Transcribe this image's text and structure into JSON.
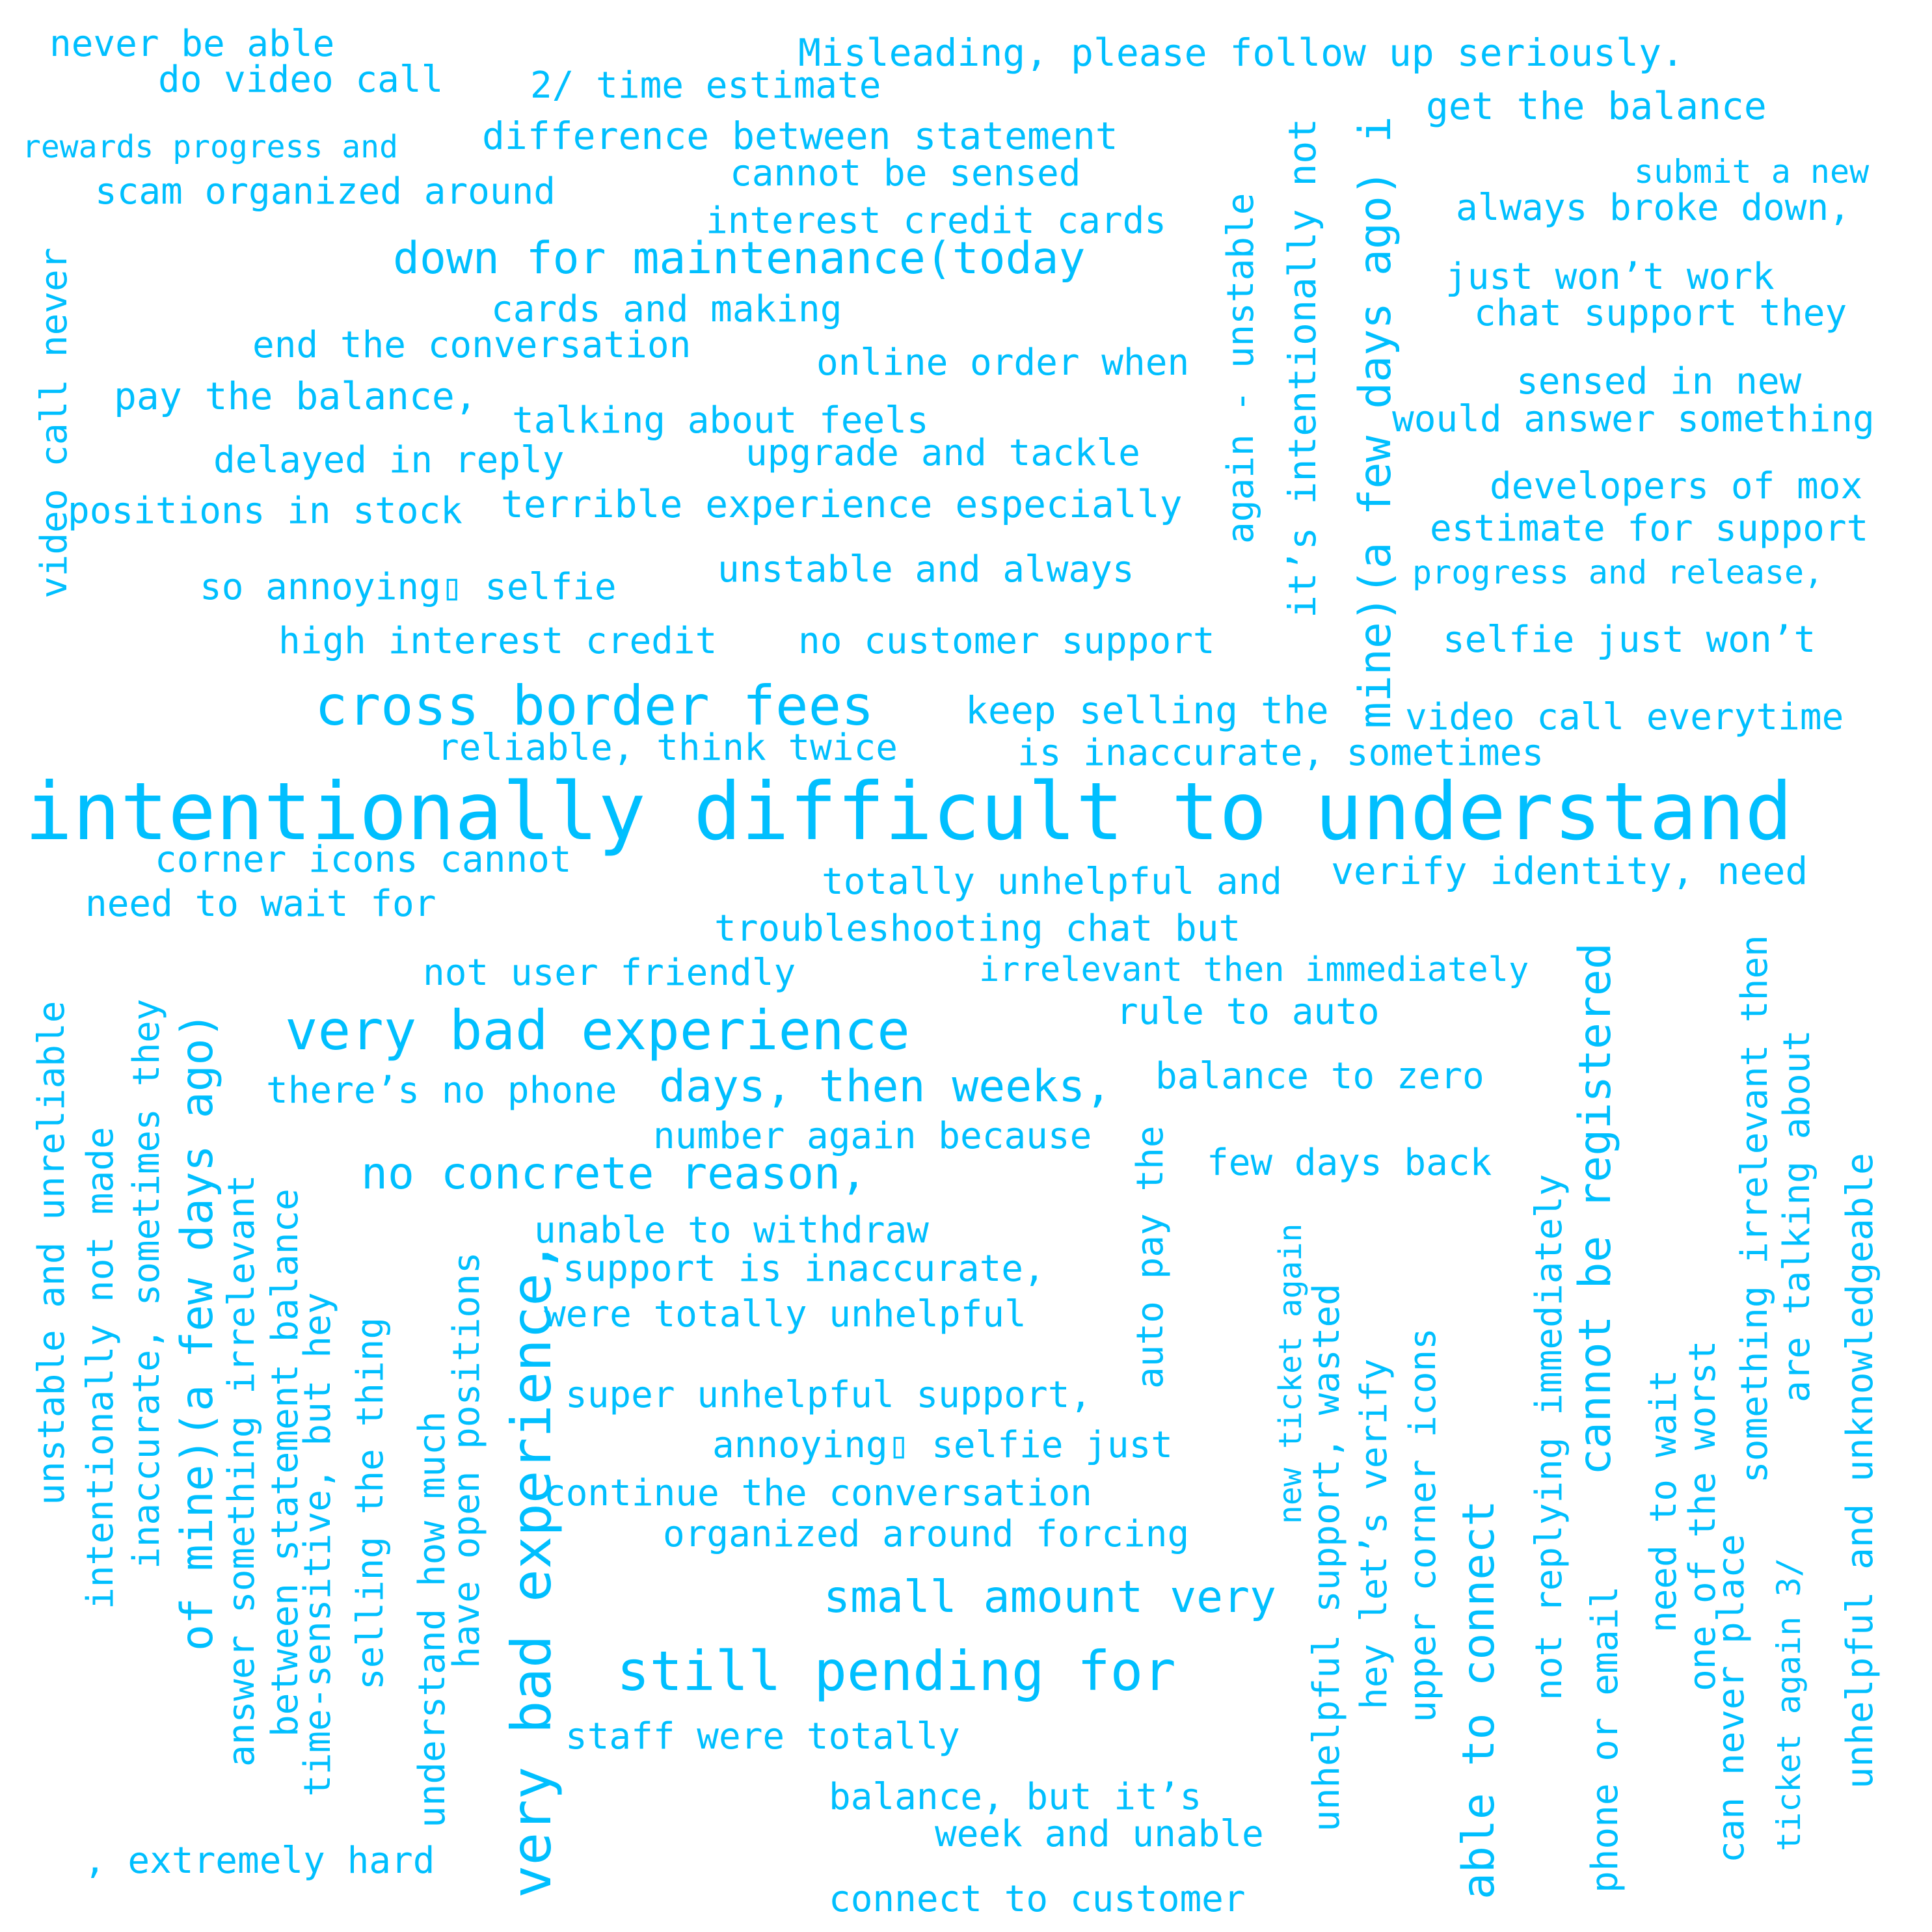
{
  "cloud": {
    "color": "#00bfff",
    "background": "#ffffff",
    "phrases": [
      "never be able",
      "do video call",
      "2/ time estimate",
      "Misleading, please follow up seriously.",
      "rewards progress and",
      "difference between statement",
      "get the balance",
      "submit a new",
      "scam organized around",
      "cannot be sensed",
      "always broke down,",
      "interest credit cards",
      "down for maintenance(today",
      "just won’t work",
      "chat support they",
      "cards and making",
      "end the conversation",
      "online order when",
      "sensed in new",
      "pay the balance,",
      "talking about feels",
      "would answer something",
      "delayed in reply",
      "upgrade and tackle",
      "developers of mox",
      "positions in stock",
      "terrible experience especially",
      "estimate for support",
      "progress and release,",
      "unstable and always",
      "so annoying▯ selfie",
      "high interest credit",
      "no customer support",
      "selfie just won’t",
      "cross border fees",
      "keep selling the",
      "video call everytime",
      "reliable, think twice",
      "is inaccurate, sometimes",
      "intentionally difficult to understand",
      "corner icons cannot",
      "totally unhelpful and",
      "verify identity, need",
      "need to wait for",
      "troubleshooting chat but",
      "not user friendly",
      "irrelevant then immediately",
      "rule to auto",
      "very bad experience",
      "there’s no phone",
      "days, then weeks,",
      "balance to zero",
      "number again because",
      "no concrete reason,",
      "few days back",
      "unable to withdraw",
      "support is inaccurate,",
      "were totally unhelpful",
      "super unhelpful support,",
      "annoying▯ selfie just",
      "continue the conversation",
      "organized around forcing",
      "small amount very",
      "still pending for",
      "staff were totally",
      "balance, but it’s",
      ", extremely hard",
      "week and unable",
      "connect to customer",
      "video call never",
      "again - unstable",
      "it’s intentionally not",
      "mine)(a few days ago) i",
      "unstable and unreliable",
      "intentionally not made",
      "inaccurate, sometimes they",
      "of mine)(a few days ago)",
      "answer something irrelevant",
      "between statement balance",
      "time-sensitive, but hey",
      "selling the thing",
      "understand how much",
      "have open positions",
      "very bad experience,",
      "auto pay the",
      "new ticket again",
      "unhelpful support, wasted",
      "hey let’s verify",
      "upper corner icons",
      "able to connect",
      "not replying immediately",
      "cannot be registered",
      "phone or email",
      "need to wait",
      "one of the worst",
      "can never place",
      "something irrelevant then",
      "ticket again 3/",
      "are talking about",
      "unhelpful and unknowledgeable"
    ]
  }
}
